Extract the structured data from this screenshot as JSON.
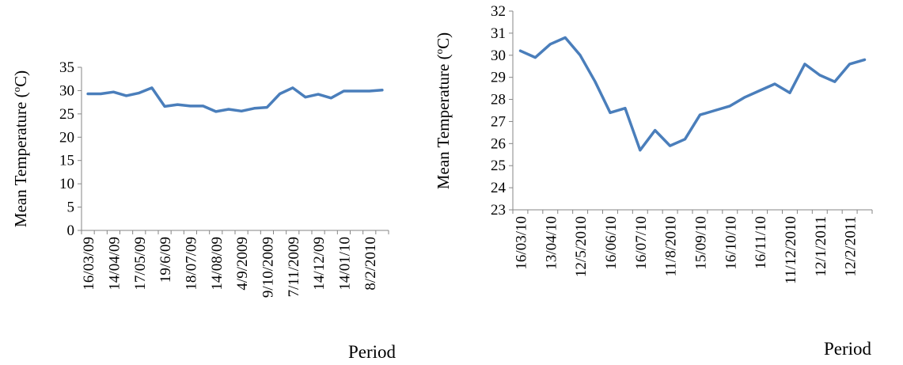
{
  "chart_data": [
    {
      "type": "line",
      "ylabel": "Mean Temperature (oC)",
      "xlabel": "Period",
      "ylim": [
        0,
        35
      ],
      "yticks": [
        0,
        5,
        10,
        15,
        20,
        25,
        30,
        35
      ],
      "grid": false,
      "legend": "none",
      "color": "#4a7ebb",
      "tick_labels": [
        "16/03/09",
        "14/04/09",
        "17/05/09",
        "19/6/09",
        "18/07/09",
        "14/08/09",
        "4/9/2009",
        "9/10/2009",
        "7/11/2009",
        "14/12/09",
        "14/01/10",
        "8/2/2010"
      ],
      "tick_every": 2,
      "values": [
        29.3,
        29.3,
        29.7,
        28.9,
        29.5,
        30.6,
        26.6,
        27.0,
        26.7,
        26.7,
        25.5,
        26.0,
        25.6,
        26.2,
        26.4,
        29.3,
        30.6,
        28.6,
        29.2,
        28.4,
        29.9,
        29.9,
        29.9,
        30.1
      ]
    },
    {
      "type": "line",
      "ylabel": "Mean Temperature (oC)",
      "xlabel": "Period",
      "ylim": [
        23,
        32
      ],
      "yticks": [
        23,
        24,
        25,
        26,
        27,
        28,
        29,
        30,
        31,
        32
      ],
      "grid": false,
      "legend": "none",
      "color": "#4a7ebb",
      "tick_labels": [
        "16/03/10",
        "13/04/10",
        "12/5/2010",
        "16/06/10",
        "16/07/10",
        "11/8/2010",
        "15/09/10",
        "16/10/10",
        "16/11/10",
        "11/12/2010",
        "12/1/2011",
        "12/2/2011"
      ],
      "tick_every": 2,
      "values": [
        30.2,
        29.9,
        30.5,
        30.8,
        30.0,
        28.8,
        27.4,
        27.6,
        25.7,
        26.6,
        25.9,
        26.2,
        27.3,
        27.5,
        27.7,
        28.1,
        28.4,
        28.7,
        28.3,
        29.6,
        29.1,
        28.8,
        29.6,
        29.8
      ]
    }
  ]
}
